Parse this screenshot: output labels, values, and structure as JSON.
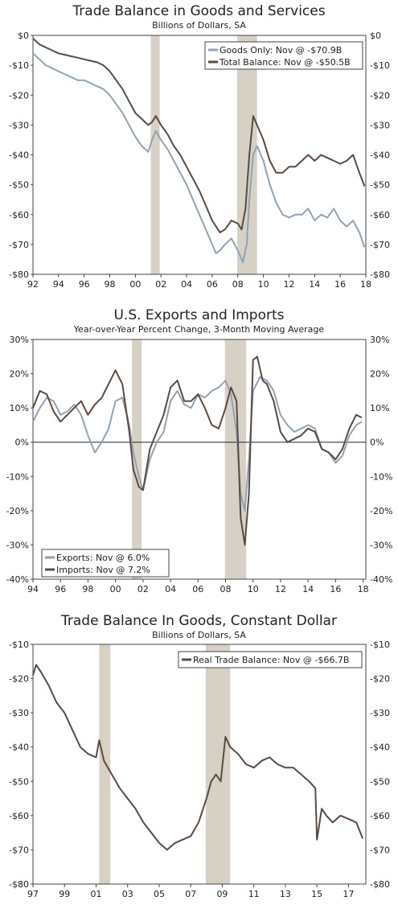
{
  "chart_data": [
    {
      "type": "line",
      "title": "Trade Balance in Goods and Services",
      "subtitle": "Billions of Dollars, SA",
      "x_ticks": [
        "92",
        "94",
        "96",
        "98",
        "00",
        "02",
        "04",
        "06",
        "08",
        "10",
        "12",
        "14",
        "16",
        "18"
      ],
      "y_ticks": [
        "$0",
        "-$10",
        "-$20",
        "-$30",
        "-$40",
        "-$50",
        "-$60",
        "-$70",
        "-$80"
      ],
      "ylim": [
        -80,
        0
      ],
      "xlim": [
        1992,
        2018
      ],
      "recessions": [
        [
          2001.2,
          2001.9
        ],
        [
          2007.95,
          2009.5
        ]
      ],
      "legend_position": "top-right",
      "series": [
        {
          "name": "Goods Only: Nov @ -$70.9B",
          "color": "#8fa3b5",
          "x": [
            1992,
            1992.5,
            1993,
            1993.5,
            1994,
            1994.5,
            1995,
            1995.5,
            1996,
            1996.5,
            1997,
            1997.5,
            1998,
            1998.5,
            1999,
            1999.5,
            2000,
            2000.5,
            2001,
            2001.3,
            2001.6,
            2002,
            2002.5,
            2003,
            2003.5,
            2004,
            2004.5,
            2005,
            2005.5,
            2006,
            2006.3,
            2006.6,
            2007,
            2007.5,
            2008,
            2008.4,
            2008.7,
            2008.9,
            2009.2,
            2009.5,
            2010,
            2010.5,
            2011,
            2011.5,
            2012,
            2012.5,
            2013,
            2013.5,
            2014,
            2014.5,
            2015,
            2015.5,
            2016,
            2016.5,
            2017,
            2017.5,
            2017.9
          ],
          "y": [
            -6,
            -8,
            -10,
            -11,
            -12,
            -13,
            -14,
            -15,
            -15,
            -16,
            -17,
            -18,
            -20,
            -23,
            -26,
            -30,
            -34,
            -37,
            -39,
            -35,
            -32,
            -35,
            -38,
            -42,
            -46,
            -50,
            -55,
            -60,
            -65,
            -70,
            -73,
            -72,
            -70,
            -68,
            -72,
            -76,
            -70,
            -55,
            -40,
            -37,
            -42,
            -50,
            -56,
            -60,
            -61,
            -60,
            -60,
            -58,
            -62,
            -60,
            -61,
            -58,
            -62,
            -64,
            -62,
            -66,
            -70.9
          ]
        },
        {
          "name": "Total Balance: Nov @ -$50.5B",
          "color": "#5a4a42",
          "x": [
            1992,
            1992.5,
            1993,
            1993.5,
            1994,
            1994.5,
            1995,
            1995.5,
            1996,
            1996.5,
            1997,
            1997.5,
            1998,
            1998.5,
            1999,
            1999.5,
            2000,
            2000.5,
            2001,
            2001.3,
            2001.6,
            2002,
            2002.5,
            2003,
            2003.5,
            2004,
            2004.5,
            2005,
            2005.5,
            2006,
            2006.3,
            2006.6,
            2007,
            2007.5,
            2008,
            2008.3,
            2008.6,
            2008.9,
            2009.2,
            2009.5,
            2010,
            2010.5,
            2011,
            2011.5,
            2012,
            2012.5,
            2013,
            2013.5,
            2014,
            2014.5,
            2015,
            2015.5,
            2016,
            2016.5,
            2017,
            2017.5,
            2017.9
          ],
          "y": [
            -1,
            -3,
            -4,
            -5,
            -6,
            -6.5,
            -7,
            -7.5,
            -8,
            -8.5,
            -9,
            -10,
            -12,
            -15,
            -18,
            -22,
            -26,
            -28,
            -30,
            -29,
            -27,
            -30,
            -33,
            -37,
            -40,
            -44,
            -48,
            -52,
            -57,
            -62,
            -64,
            -66,
            -65,
            -62,
            -63,
            -65,
            -58,
            -40,
            -27,
            -30,
            -35,
            -42,
            -46,
            -46,
            -44,
            -44,
            -42,
            -40,
            -42,
            -40,
            -41,
            -42,
            -43,
            -42,
            -40,
            -46,
            -50.5
          ]
        }
      ]
    },
    {
      "type": "line",
      "title": "U.S. Exports and Imports",
      "subtitle": "Year-over-Year Percent Change, 3-Month Moving Average",
      "x_ticks": [
        "94",
        "96",
        "98",
        "00",
        "02",
        "04",
        "06",
        "08",
        "10",
        "12",
        "14",
        "16",
        "18"
      ],
      "y_ticks": [
        "30%",
        "20%",
        "10%",
        "0%",
        "-10%",
        "-20%",
        "-30%",
        "-40%"
      ],
      "ylim": [
        -40,
        30
      ],
      "xlim": [
        1994,
        2018.2
      ],
      "recessions": [
        [
          2001.2,
          2001.9
        ],
        [
          2007.95,
          2009.5
        ]
      ],
      "legend_position": "bottom-left",
      "series": [
        {
          "name": "Exports: Nov @ 6.0%",
          "color": "#8fa3b5",
          "x": [
            1994,
            1994.5,
            1995,
            1995.5,
            1996,
            1996.5,
            1997,
            1997.5,
            1998,
            1998.5,
            1999,
            1999.5,
            2000,
            2000.5,
            2001,
            2001.3,
            2001.7,
            2002,
            2002.5,
            2003,
            2003.5,
            2004,
            2004.5,
            2005,
            2005.5,
            2006,
            2006.5,
            2007,
            2007.5,
            2008,
            2008.4,
            2008.8,
            2009.1,
            2009.4,
            2009.7,
            2010,
            2010.5,
            2011,
            2011.5,
            2012,
            2012.5,
            2013,
            2013.5,
            2014,
            2014.5,
            2015,
            2015.5,
            2016,
            2016.5,
            2017,
            2017.5,
            2017.9
          ],
          "y": [
            6,
            10,
            13,
            12,
            8,
            9,
            11,
            8,
            2,
            -3,
            0,
            4,
            12,
            13,
            5,
            -3,
            -10,
            -14,
            -5,
            0,
            3,
            12,
            15,
            11,
            10,
            14,
            13,
            15,
            16,
            18,
            14,
            3,
            -15,
            -20,
            -5,
            15,
            19,
            18,
            15,
            8,
            5,
            3,
            4,
            5,
            4,
            -2,
            -3,
            -6,
            -4,
            2,
            5,
            6
          ]
        },
        {
          "name": "Imports: Nov @ 7.2%",
          "color": "#5a4a42",
          "x": [
            1994,
            1994.5,
            1995,
            1995.5,
            1996,
            1996.5,
            1997,
            1997.5,
            1998,
            1998.5,
            1999,
            1999.5,
            2000,
            2000.5,
            2001,
            2001.3,
            2001.7,
            2002,
            2002.5,
            2003,
            2003.5,
            2004,
            2004.5,
            2005,
            2005.5,
            2006,
            2006.5,
            2007,
            2007.5,
            2008,
            2008.4,
            2008.8,
            2009.1,
            2009.4,
            2009.7,
            2010,
            2010.3,
            2010.7,
            2011,
            2011.5,
            2012,
            2012.5,
            2013,
            2013.5,
            2014,
            2014.5,
            2015,
            2015.5,
            2016,
            2016.5,
            2017,
            2017.5,
            2017.9
          ],
          "y": [
            10,
            15,
            14,
            9,
            6,
            8,
            10,
            12,
            8,
            11,
            13,
            17,
            21,
            17,
            3,
            -8,
            -13,
            -14,
            -2,
            3,
            8,
            16,
            18,
            12,
            12,
            14,
            10,
            5,
            4,
            10,
            16,
            12,
            -22,
            -30,
            -15,
            24,
            25,
            18,
            17,
            12,
            3,
            0,
            1,
            2,
            4,
            3,
            -2,
            -3,
            -5,
            -2,
            4,
            8,
            7.2
          ]
        }
      ]
    },
    {
      "type": "line",
      "title": "Trade Balance In Goods, Constant Dollar",
      "subtitle": "Billions of Dollars, SA",
      "x_ticks": [
        "97",
        "99",
        "01",
        "03",
        "05",
        "07",
        "09",
        "11",
        "13",
        "15",
        "17"
      ],
      "y_ticks": [
        "-$10",
        "-$20",
        "-$30",
        "-$40",
        "-$50",
        "-$60",
        "-$70",
        "-$80"
      ],
      "ylim": [
        -80,
        -10
      ],
      "xlim": [
        1997,
        2018.1
      ],
      "recessions": [
        [
          2001.2,
          2001.9
        ],
        [
          2007.95,
          2009.5
        ]
      ],
      "legend_position": "top-right",
      "series": [
        {
          "name": "Real Trade Balance: Nov @ -$66.7B",
          "color": "#5a4a42",
          "x": [
            1997,
            1997.2,
            1997.5,
            1998,
            1998.5,
            1999,
            1999.5,
            2000,
            2000.5,
            2001,
            2001.2,
            2001.5,
            2002,
            2002.5,
            2003,
            2003.5,
            2004,
            2004.5,
            2005,
            2005.5,
            2006,
            2006.5,
            2007,
            2007.5,
            2008,
            2008.3,
            2008.6,
            2008.9,
            2009.2,
            2009.5,
            2010,
            2010.5,
            2011,
            2011.5,
            2012,
            2012.5,
            2013,
            2013.5,
            2014,
            2014.5,
            2014.9,
            2015,
            2015.3,
            2015.6,
            2016,
            2016.5,
            2017,
            2017.5,
            2017.9
          ],
          "y": [
            -19,
            -16,
            -18,
            -22,
            -27,
            -30,
            -35,
            -40,
            -42,
            -43,
            -38,
            -44,
            -48,
            -52,
            -55,
            -58,
            -62,
            -65,
            -68,
            -70,
            -68,
            -67,
            -66,
            -62,
            -55,
            -50,
            -48,
            -50,
            -37,
            -40,
            -42,
            -45,
            -46,
            -44,
            -43,
            -45,
            -46,
            -46,
            -48,
            -50,
            -52,
            -67,
            -58,
            -60,
            -62,
            -60,
            -61,
            -62,
            -66.7
          ]
        }
      ]
    }
  ]
}
